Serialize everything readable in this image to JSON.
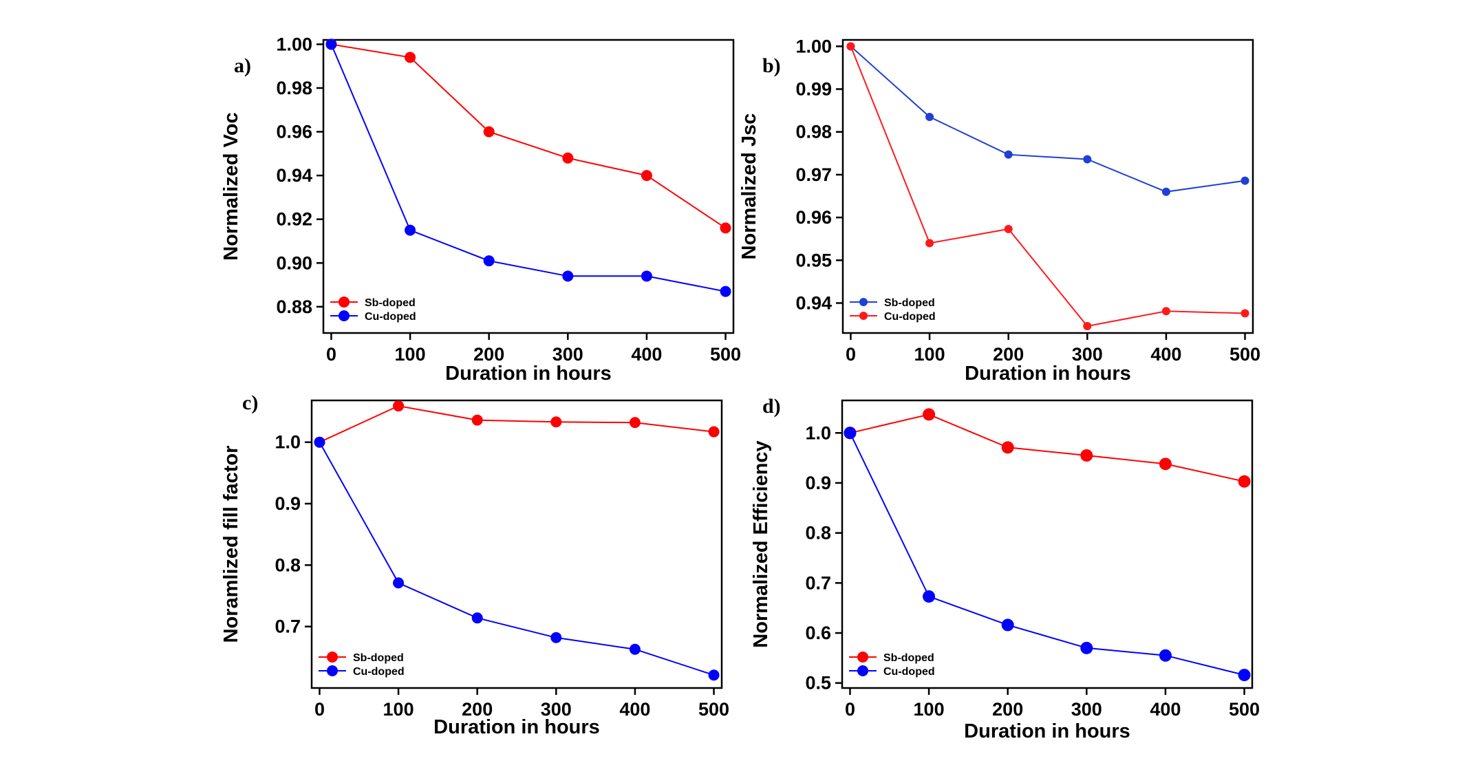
{
  "chart_data": [
    {
      "panel_label": "a)",
      "type": "line",
      "xlabel": "Duration in hours",
      "ylabel": "Normalized Voc",
      "x": [
        0,
        100,
        200,
        300,
        400,
        500
      ],
      "xlim": [
        -10,
        510
      ],
      "ylim": [
        0.868,
        1.002
      ],
      "xticks": [
        0,
        100,
        200,
        300,
        400,
        500
      ],
      "xtick_labels": [
        "0",
        "100",
        "200",
        "300",
        "400",
        "500"
      ],
      "yticks": [
        0.88,
        0.9,
        0.92,
        0.94,
        0.96,
        0.98,
        1.0
      ],
      "ytick_labels": [
        "0.88",
        "0.90",
        "0.92",
        "0.94",
        "0.96",
        "0.98",
        "1.00"
      ],
      "legend_position": "bottom-left",
      "series": [
        {
          "name": "Sb-doped",
          "color": "#ff0000",
          "values": [
            1.0,
            0.994,
            0.96,
            0.948,
            0.94,
            0.916
          ]
        },
        {
          "name": "Cu-doped",
          "color": "#0000ff",
          "values": [
            1.0,
            0.915,
            0.901,
            0.894,
            0.894,
            0.887
          ]
        }
      ],
      "marker_size": "medium"
    },
    {
      "panel_label": "b)",
      "type": "line",
      "xlabel": "Duration in hours",
      "ylabel": "Normalized Jsc",
      "x": [
        0,
        100,
        200,
        300,
        400,
        500
      ],
      "xlim": [
        -10,
        510
      ],
      "ylim": [
        0.933,
        1.0015
      ],
      "xticks": [
        0,
        100,
        200,
        300,
        400,
        500
      ],
      "xtick_labels": [
        "0",
        "100",
        "200",
        "300",
        "400",
        "500"
      ],
      "yticks": [
        0.94,
        0.95,
        0.96,
        0.97,
        0.98,
        0.99,
        1.0
      ],
      "ytick_labels": [
        "0.94",
        "0.95",
        "0.96",
        "0.97",
        "0.98",
        "0.99",
        "1.00"
      ],
      "legend_position": "bottom-left",
      "series": [
        {
          "name": "Sb-doped",
          "color": "#1f3fd6",
          "values": [
            1.0,
            0.9835,
            0.9747,
            0.9736,
            0.966,
            0.9686
          ]
        },
        {
          "name": "Cu-doped",
          "color": "#ff1a1a",
          "values": [
            1.0,
            0.954,
            0.9573,
            0.9346,
            0.9381,
            0.9376
          ]
        }
      ],
      "marker_size": "small"
    },
    {
      "panel_label": "c)",
      "type": "line",
      "xlabel": "Duration in hours",
      "ylabel": "Noramlized fill factor",
      "x": [
        0,
        100,
        200,
        300,
        400,
        500
      ],
      "xlim": [
        -10,
        510
      ],
      "ylim": [
        0.6,
        1.068
      ],
      "xticks": [
        0,
        100,
        200,
        300,
        400,
        500
      ],
      "xtick_labels": [
        "0",
        "100",
        "200",
        "300",
        "400",
        "500"
      ],
      "yticks": [
        0.7,
        0.8,
        0.9,
        1.0
      ],
      "ytick_labels": [
        "0.7",
        "0.8",
        "0.9",
        "1.0"
      ],
      "legend_position": "bottom-left",
      "series": [
        {
          "name": "Sb-doped",
          "color": "#ff0000",
          "values": [
            1.0,
            1.059,
            1.036,
            1.033,
            1.032,
            1.017
          ]
        },
        {
          "name": "Cu-doped",
          "color": "#0000ff",
          "values": [
            1.0,
            0.771,
            0.714,
            0.682,
            0.663,
            0.621
          ]
        }
      ],
      "marker_size": "medium"
    },
    {
      "panel_label": "d)",
      "type": "line",
      "xlabel": "Duration in hours",
      "ylabel": "Normalized Efficiency",
      "x": [
        0,
        100,
        200,
        300,
        400,
        500
      ],
      "xlim": [
        -10,
        510
      ],
      "ylim": [
        0.49,
        1.065
      ],
      "xticks": [
        0,
        100,
        200,
        300,
        400,
        500
      ],
      "xtick_labels": [
        "0",
        "100",
        "200",
        "300",
        "400",
        "500"
      ],
      "yticks": [
        0.5,
        0.6,
        0.7,
        0.8,
        0.9,
        1.0
      ],
      "ytick_labels": [
        "0.5",
        "0.6",
        "0.7",
        "0.8",
        "0.9",
        "1.0"
      ],
      "legend_position": "bottom-left",
      "series": [
        {
          "name": "Sb-doped",
          "color": "#ff0000",
          "values": [
            1.0,
            1.037,
            0.971,
            0.955,
            0.938,
            0.903
          ]
        },
        {
          "name": "Cu-doped",
          "color": "#0000ff",
          "values": [
            1.0,
            0.673,
            0.616,
            0.57,
            0.555,
            0.516
          ]
        }
      ],
      "marker_size": "large"
    }
  ]
}
